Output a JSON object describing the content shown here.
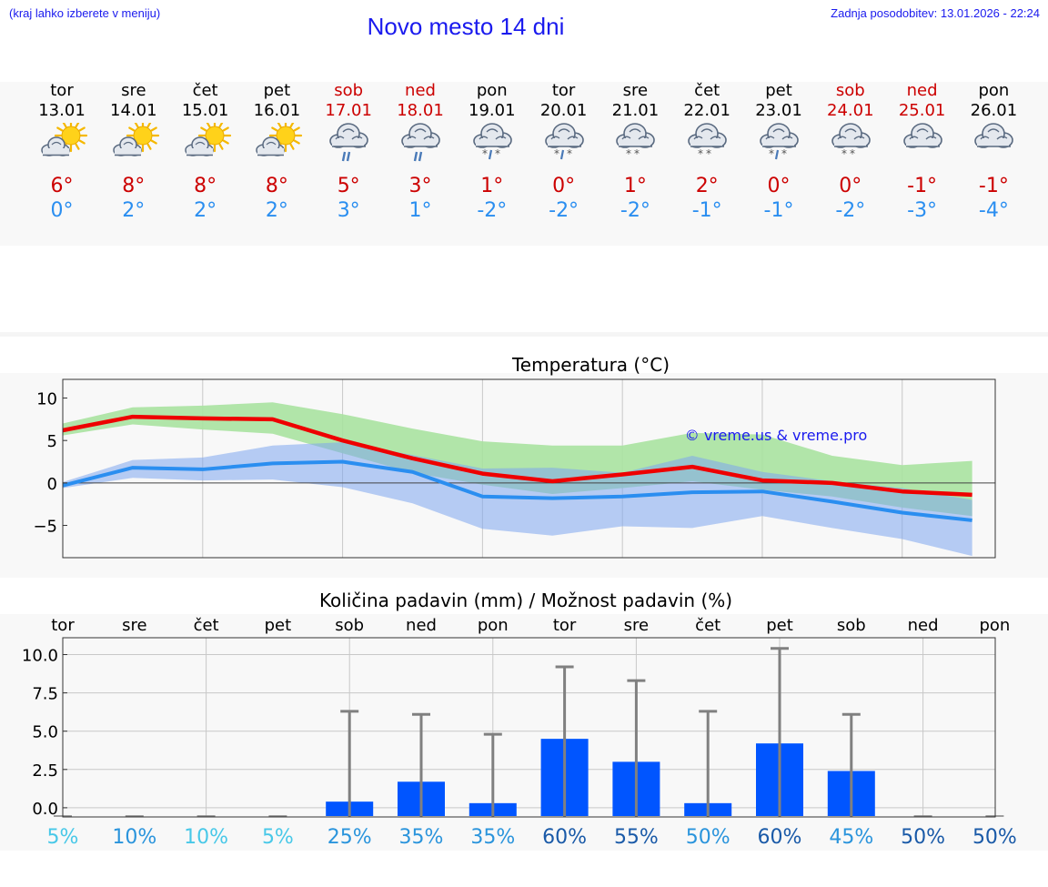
{
  "header": {
    "left_note": "(kraj lahko izberete v meniju)",
    "title": "Novo mesto 14 dni",
    "updated": "Zadnja posodobitev: 13.01.2026 - 22:24"
  },
  "days": [
    {
      "name": "tor",
      "date": "13.01",
      "weekend": false,
      "icon": "sun-cloud-icon",
      "tmax": "6°",
      "tmin": "0°"
    },
    {
      "name": "sre",
      "date": "14.01",
      "weekend": false,
      "icon": "sun-cloud-icon",
      "tmax": "8°",
      "tmin": "2°"
    },
    {
      "name": "čet",
      "date": "15.01",
      "weekend": false,
      "icon": "sun-cloud-icon",
      "tmax": "8°",
      "tmin": "2°"
    },
    {
      "name": "pet",
      "date": "16.01",
      "weekend": false,
      "icon": "sun-cloud-icon",
      "tmax": "8°",
      "tmin": "2°"
    },
    {
      "name": "sob",
      "date": "17.01",
      "weekend": true,
      "icon": "rain-cloud-icon",
      "tmax": "5°",
      "tmin": "3°"
    },
    {
      "name": "ned",
      "date": "18.01",
      "weekend": true,
      "icon": "rain-cloud-icon",
      "tmax": "3°",
      "tmin": "1°"
    },
    {
      "name": "pon",
      "date": "19.01",
      "weekend": false,
      "icon": "sleet-cloud-icon",
      "tmax": "1°",
      "tmin": "-2°"
    },
    {
      "name": "tor",
      "date": "20.01",
      "weekend": false,
      "icon": "sleet-cloud-icon",
      "tmax": "0°",
      "tmin": "-2°"
    },
    {
      "name": "sre",
      "date": "21.01",
      "weekend": false,
      "icon": "snow-cloud-icon",
      "tmax": "1°",
      "tmin": "-2°"
    },
    {
      "name": "čet",
      "date": "22.01",
      "weekend": false,
      "icon": "snow-cloud-icon",
      "tmax": "2°",
      "tmin": "-1°"
    },
    {
      "name": "pet",
      "date": "23.01",
      "weekend": false,
      "icon": "sleet-cloud-icon",
      "tmax": "0°",
      "tmin": "-1°"
    },
    {
      "name": "sob",
      "date": "24.01",
      "weekend": true,
      "icon": "snow-cloud-icon",
      "tmax": "0°",
      "tmin": "-2°"
    },
    {
      "name": "ned",
      "date": "25.01",
      "weekend": true,
      "icon": "cloud-icon",
      "tmax": "-1°",
      "tmin": "-3°"
    },
    {
      "name": "pon",
      "date": "26.01",
      "weekend": false,
      "icon": "cloud-icon",
      "tmax": "-1°",
      "tmin": "-4°"
    }
  ],
  "colors": {
    "title": "#1a1aee",
    "tmax": "#cc0000",
    "tmin": "#2a8ef0",
    "band_max": "#a8e2a0",
    "band_min": "#a9c4f0",
    "band_overlap": "#7fc4a8",
    "line_max": "#ee0000",
    "line_min": "#2a8ef0",
    "bar": "#0055ff",
    "errbar": "#808080"
  },
  "chart_data": [
    {
      "type": "line",
      "title": "Temperatura (°C)",
      "watermark": "© vreme.us & vreme.pro",
      "x": [
        0,
        1,
        2,
        3,
        4,
        5,
        6,
        7,
        8,
        9,
        10,
        11,
        12,
        13
      ],
      "xlim": [
        0,
        13.33
      ],
      "ylim": [
        -8.8,
        12.2
      ],
      "yticks": [
        10,
        5,
        0,
        -5
      ],
      "ytick_labels": [
        "10",
        "5",
        "0",
        "−5"
      ],
      "series": [
        {
          "name": "max",
          "values": [
            6.2,
            7.8,
            7.6,
            7.5,
            5.0,
            2.9,
            1.1,
            0.2,
            1.0,
            1.9,
            0.3,
            0.0,
            -1.0,
            -1.4
          ]
        },
        {
          "name": "min",
          "values": [
            -0.3,
            1.8,
            1.6,
            2.3,
            2.5,
            1.3,
            -1.6,
            -1.8,
            -1.6,
            -1.1,
            -1.0,
            -2.2,
            -3.5,
            -4.4
          ]
        }
      ],
      "bands": [
        {
          "name": "max_range",
          "low": [
            5.6,
            6.9,
            6.3,
            5.8,
            3.5,
            1.2,
            -0.2,
            -1.3,
            -0.6,
            0.2,
            -0.8,
            -1.6,
            -2.9,
            -3.9
          ],
          "high": [
            7.0,
            8.9,
            9.1,
            9.5,
            8.1,
            6.4,
            4.9,
            4.4,
            4.4,
            5.9,
            5.7,
            3.2,
            2.1,
            2.6
          ]
        },
        {
          "name": "min_range",
          "low": [
            -0.6,
            0.6,
            0.3,
            0.4,
            -0.5,
            -2.4,
            -5.4,
            -6.2,
            -5.1,
            -5.3,
            -3.9,
            -5.3,
            -6.6,
            -8.6
          ],
          "high": [
            0.1,
            2.7,
            3.0,
            4.4,
            4.8,
            3.3,
            1.7,
            1.8,
            1.2,
            3.2,
            1.3,
            0.2,
            -0.6,
            -2.0
          ]
        }
      ]
    },
    {
      "type": "bar",
      "title": "Količina padavin (mm) / Možnost padavin (%)",
      "categories": [
        "tor",
        "sre",
        "čet",
        "pet",
        "sob",
        "ned",
        "pon",
        "tor",
        "sre",
        "čet",
        "pet",
        "sob",
        "ned",
        "pon"
      ],
      "values": [
        0,
        0,
        0,
        0,
        0.4,
        1.7,
        0.3,
        4.5,
        3.0,
        0.3,
        4.2,
        2.4,
        0,
        0
      ],
      "err_high": [
        0,
        0,
        0,
        0,
        6.3,
        6.1,
        4.8,
        9.2,
        8.3,
        6.3,
        10.4,
        6.1,
        0,
        0
      ],
      "ylim": [
        -0.6,
        11.1
      ],
      "yticks": [
        10.0,
        7.5,
        5.0,
        2.5,
        0.0
      ],
      "ytick_labels": [
        "10.0",
        "7.5",
        "5.0",
        "2.5",
        "0.0"
      ],
      "probability": [
        "5%",
        "10%",
        "10%",
        "5%",
        "25%",
        "35%",
        "35%",
        "60%",
        "55%",
        "50%",
        "60%",
        "45%",
        "50%",
        "50%"
      ],
      "probability_colors": [
        "#48c8e8",
        "#2a94dc",
        "#48c8e8",
        "#48c8e8",
        "#2a94dc",
        "#2a94dc",
        "#2a94dc",
        "#1a5aa8",
        "#1a5aa8",
        "#2a94dc",
        "#1a5aa8",
        "#2a94dc",
        "#1a5aa8",
        "#1a5aa8"
      ]
    }
  ]
}
